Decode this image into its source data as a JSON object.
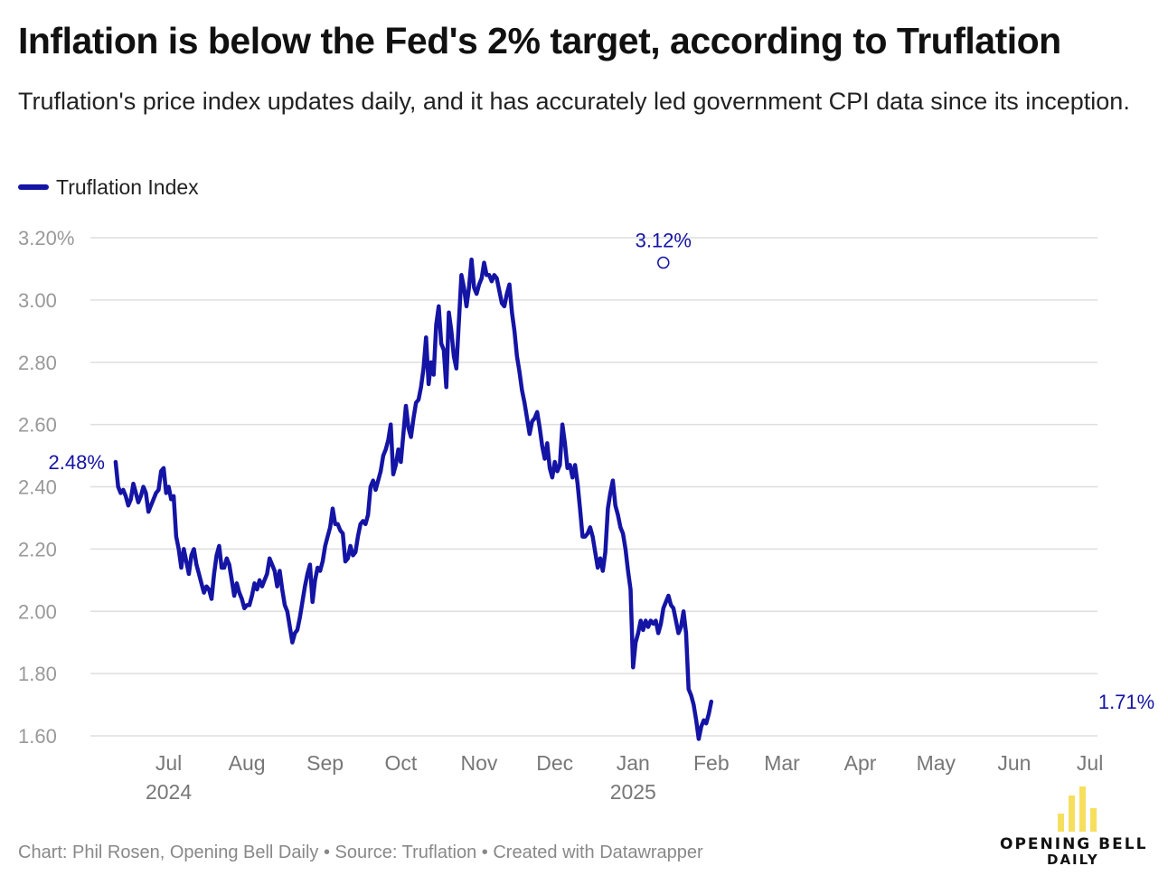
{
  "header": {
    "title": "Inflation is below the Fed's 2% target, according to Truflation",
    "subtitle": "Truflation's price index updates daily, and it has accurately led government CPI data since its inception."
  },
  "legend": {
    "label": "Truflation Index",
    "color": "#1414a5"
  },
  "footer": {
    "text": "Chart: Phil Rosen, Opening Bell Daily • Source: Truflation • Created with Datawrapper"
  },
  "logo": {
    "line1": "OPENING BELL",
    "line2": "DAILY",
    "bar_color": "#f7df5e"
  },
  "chart_data": {
    "type": "line",
    "title": "Inflation is below the Fed's 2% target, according to Truflation",
    "subtitle": "Truflation's price index updates daily, and it has accurately led government CPI data since its inception.",
    "xlabel": "",
    "ylabel": "",
    "ylim": [
      1.6,
      3.2
    ],
    "yticks": [
      1.6,
      1.8,
      2.0,
      2.2,
      2.4,
      2.6,
      2.8,
      3.0,
      3.2
    ],
    "ytick_labels": [
      "1.60",
      "1.80",
      "2.00",
      "2.20",
      "2.40",
      "2.60",
      "2.80",
      "3.00",
      "3.20%"
    ],
    "xlim": [
      "2024-06-14",
      "2025-07-18"
    ],
    "xticks": [
      {
        "date": "2024-07-15",
        "label": "Jul",
        "year": "2024"
      },
      {
        "date": "2024-08-15",
        "label": "Aug",
        "year": ""
      },
      {
        "date": "2024-09-15",
        "label": "Sep",
        "year": ""
      },
      {
        "date": "2024-10-15",
        "label": "Oct",
        "year": ""
      },
      {
        "date": "2024-11-15",
        "label": "Nov",
        "year": ""
      },
      {
        "date": "2024-12-15",
        "label": "Dec",
        "year": ""
      },
      {
        "date": "2025-01-15",
        "label": "Jan",
        "year": "2025"
      },
      {
        "date": "2025-02-15",
        "label": "Feb",
        "year": ""
      },
      {
        "date": "2025-03-15",
        "label": "Mar",
        "year": ""
      },
      {
        "date": "2025-04-15",
        "label": "Apr",
        "year": ""
      },
      {
        "date": "2025-05-15",
        "label": "May",
        "year": ""
      },
      {
        "date": "2025-06-15",
        "label": "Jun",
        "year": ""
      },
      {
        "date": "2025-07-15",
        "label": "Jul",
        "year": ""
      }
    ],
    "grid": true,
    "legend_position": "top-left",
    "series": [
      {
        "name": "Truflation Index",
        "color": "#1414a5",
        "points": [
          [
            "2024-06-24",
            2.48
          ],
          [
            "2024-06-25",
            2.4
          ],
          [
            "2024-06-26",
            2.38
          ],
          [
            "2024-06-27",
            2.39
          ],
          [
            "2024-06-28",
            2.37
          ],
          [
            "2024-06-29",
            2.34
          ],
          [
            "2024-06-30",
            2.36
          ],
          [
            "2024-07-01",
            2.41
          ],
          [
            "2024-07-02",
            2.38
          ],
          [
            "2024-07-03",
            2.35
          ],
          [
            "2024-07-04",
            2.37
          ],
          [
            "2024-07-05",
            2.4
          ],
          [
            "2024-07-06",
            2.38
          ],
          [
            "2024-07-07",
            2.32
          ],
          [
            "2024-07-08",
            2.34
          ],
          [
            "2024-07-09",
            2.36
          ],
          [
            "2024-07-10",
            2.38
          ],
          [
            "2024-07-11",
            2.39
          ],
          [
            "2024-07-12",
            2.45
          ],
          [
            "2024-07-13",
            2.46
          ],
          [
            "2024-07-14",
            2.38
          ],
          [
            "2024-07-15",
            2.4
          ],
          [
            "2024-07-16",
            2.36
          ],
          [
            "2024-07-17",
            2.37
          ],
          [
            "2024-07-18",
            2.24
          ],
          [
            "2024-07-19",
            2.2
          ],
          [
            "2024-07-20",
            2.14
          ],
          [
            "2024-07-21",
            2.2
          ],
          [
            "2024-07-22",
            2.16
          ],
          [
            "2024-07-23",
            2.12
          ],
          [
            "2024-07-24",
            2.18
          ],
          [
            "2024-07-25",
            2.2
          ],
          [
            "2024-07-26",
            2.15
          ],
          [
            "2024-07-27",
            2.12
          ],
          [
            "2024-07-28",
            2.09
          ],
          [
            "2024-07-29",
            2.06
          ],
          [
            "2024-07-30",
            2.08
          ],
          [
            "2024-07-31",
            2.07
          ],
          [
            "2024-08-01",
            2.04
          ],
          [
            "2024-08-02",
            2.12
          ],
          [
            "2024-08-03",
            2.18
          ],
          [
            "2024-08-04",
            2.21
          ],
          [
            "2024-08-05",
            2.14
          ],
          [
            "2024-08-06",
            2.14
          ],
          [
            "2024-08-07",
            2.17
          ],
          [
            "2024-08-08",
            2.15
          ],
          [
            "2024-08-09",
            2.1
          ],
          [
            "2024-08-10",
            2.05
          ],
          [
            "2024-08-11",
            2.09
          ],
          [
            "2024-08-12",
            2.06
          ],
          [
            "2024-08-13",
            2.04
          ],
          [
            "2024-08-14",
            2.01
          ],
          [
            "2024-08-15",
            2.02
          ],
          [
            "2024-08-16",
            2.02
          ],
          [
            "2024-08-17",
            2.05
          ],
          [
            "2024-08-18",
            2.09
          ],
          [
            "2024-08-19",
            2.07
          ],
          [
            "2024-08-20",
            2.1
          ],
          [
            "2024-08-21",
            2.08
          ],
          [
            "2024-08-22",
            2.1
          ],
          [
            "2024-08-23",
            2.12
          ],
          [
            "2024-08-24",
            2.17
          ],
          [
            "2024-08-25",
            2.15
          ],
          [
            "2024-08-26",
            2.13
          ],
          [
            "2024-08-27",
            2.08
          ],
          [
            "2024-08-28",
            2.13
          ],
          [
            "2024-08-29",
            2.07
          ],
          [
            "2024-08-30",
            2.02
          ],
          [
            "2024-08-31",
            2.0
          ],
          [
            "2024-09-01",
            1.95
          ],
          [
            "2024-09-02",
            1.9
          ],
          [
            "2024-09-03",
            1.93
          ],
          [
            "2024-09-04",
            1.94
          ],
          [
            "2024-09-05",
            1.98
          ],
          [
            "2024-09-06",
            2.03
          ],
          [
            "2024-09-07",
            2.08
          ],
          [
            "2024-09-08",
            2.12
          ],
          [
            "2024-09-09",
            2.15
          ],
          [
            "2024-09-10",
            2.03
          ],
          [
            "2024-09-11",
            2.1
          ],
          [
            "2024-09-12",
            2.14
          ],
          [
            "2024-09-13",
            2.13
          ],
          [
            "2024-09-14",
            2.16
          ],
          [
            "2024-09-15",
            2.21
          ],
          [
            "2024-09-16",
            2.24
          ],
          [
            "2024-09-17",
            2.27
          ],
          [
            "2024-09-18",
            2.33
          ],
          [
            "2024-09-19",
            2.28
          ],
          [
            "2024-09-20",
            2.28
          ],
          [
            "2024-09-21",
            2.26
          ],
          [
            "2024-09-22",
            2.25
          ],
          [
            "2024-09-23",
            2.16
          ],
          [
            "2024-09-24",
            2.17
          ],
          [
            "2024-09-25",
            2.21
          ],
          [
            "2024-09-26",
            2.18
          ],
          [
            "2024-09-27",
            2.19
          ],
          [
            "2024-09-28",
            2.24
          ],
          [
            "2024-09-29",
            2.28
          ],
          [
            "2024-09-30",
            2.29
          ],
          [
            "2024-10-01",
            2.28
          ],
          [
            "2024-10-02",
            2.31
          ],
          [
            "2024-10-03",
            2.4
          ],
          [
            "2024-10-04",
            2.42
          ],
          [
            "2024-10-05",
            2.39
          ],
          [
            "2024-10-06",
            2.42
          ],
          [
            "2024-10-07",
            2.45
          ],
          [
            "2024-10-08",
            2.5
          ],
          [
            "2024-10-09",
            2.52
          ],
          [
            "2024-10-10",
            2.55
          ],
          [
            "2024-10-11",
            2.6
          ],
          [
            "2024-10-12",
            2.44
          ],
          [
            "2024-10-13",
            2.47
          ],
          [
            "2024-10-14",
            2.52
          ],
          [
            "2024-10-15",
            2.48
          ],
          [
            "2024-10-16",
            2.57
          ],
          [
            "2024-10-17",
            2.66
          ],
          [
            "2024-10-18",
            2.59
          ],
          [
            "2024-10-19",
            2.56
          ],
          [
            "2024-10-20",
            2.62
          ],
          [
            "2024-10-21",
            2.67
          ],
          [
            "2024-10-22",
            2.68
          ],
          [
            "2024-10-23",
            2.72
          ],
          [
            "2024-10-24",
            2.78
          ],
          [
            "2024-10-25",
            2.88
          ],
          [
            "2024-10-26",
            2.73
          ],
          [
            "2024-10-27",
            2.8
          ],
          [
            "2024-10-28",
            2.76
          ],
          [
            "2024-10-29",
            2.92
          ],
          [
            "2024-10-30",
            2.98
          ],
          [
            "2024-10-31",
            2.86
          ],
          [
            "2024-11-01",
            2.84
          ],
          [
            "2024-11-02",
            2.72
          ],
          [
            "2024-11-03",
            2.96
          ],
          [
            "2024-11-04",
            2.9
          ],
          [
            "2024-11-05",
            2.82
          ],
          [
            "2024-11-06",
            2.78
          ],
          [
            "2024-11-07",
            2.93
          ],
          [
            "2024-11-08",
            3.08
          ],
          [
            "2024-11-09",
            3.04
          ],
          [
            "2024-11-10",
            2.98
          ],
          [
            "2024-11-11",
            3.04
          ],
          [
            "2024-11-12",
            3.13
          ],
          [
            "2024-11-13",
            3.04
          ],
          [
            "2024-11-14",
            3.02
          ],
          [
            "2024-11-15",
            3.05
          ],
          [
            "2024-11-16",
            3.07
          ],
          [
            "2024-11-17",
            3.12
          ],
          [
            "2024-11-18",
            3.08
          ],
          [
            "2024-11-19",
            3.08
          ],
          [
            "2024-11-20",
            3.06
          ],
          [
            "2024-11-21",
            3.08
          ],
          [
            "2024-11-22",
            3.07
          ],
          [
            "2024-11-23",
            3.03
          ],
          [
            "2024-11-24",
            2.99
          ],
          [
            "2024-11-25",
            2.98
          ],
          [
            "2024-11-26",
            3.02
          ],
          [
            "2024-11-27",
            3.05
          ],
          [
            "2024-11-28",
            2.96
          ],
          [
            "2024-11-29",
            2.9
          ],
          [
            "2024-11-30",
            2.82
          ],
          [
            "2024-12-01",
            2.77
          ],
          [
            "2024-12-02",
            2.71
          ],
          [
            "2024-12-03",
            2.67
          ],
          [
            "2024-12-04",
            2.62
          ],
          [
            "2024-12-05",
            2.57
          ],
          [
            "2024-12-06",
            2.61
          ],
          [
            "2024-12-07",
            2.62
          ],
          [
            "2024-12-08",
            2.64
          ],
          [
            "2024-12-09",
            2.59
          ],
          [
            "2024-12-10",
            2.53
          ],
          [
            "2024-12-11",
            2.49
          ],
          [
            "2024-12-12",
            2.54
          ],
          [
            "2024-12-13",
            2.46
          ],
          [
            "2024-12-14",
            2.43
          ],
          [
            "2024-12-15",
            2.48
          ],
          [
            "2024-12-16",
            2.45
          ],
          [
            "2024-12-17",
            2.47
          ],
          [
            "2024-12-18",
            2.6
          ],
          [
            "2024-12-19",
            2.54
          ],
          [
            "2024-12-20",
            2.46
          ],
          [
            "2024-12-21",
            2.47
          ],
          [
            "2024-12-22",
            2.43
          ],
          [
            "2024-12-23",
            2.47
          ],
          [
            "2024-12-24",
            2.41
          ],
          [
            "2024-12-25",
            2.33
          ],
          [
            "2024-12-26",
            2.24
          ],
          [
            "2024-12-27",
            2.24
          ],
          [
            "2024-12-28",
            2.25
          ],
          [
            "2024-12-29",
            2.27
          ],
          [
            "2024-12-30",
            2.24
          ],
          [
            "2024-12-31",
            2.19
          ],
          [
            "2025-01-01",
            2.14
          ],
          [
            "2025-01-02",
            2.17
          ],
          [
            "2025-01-03",
            2.13
          ],
          [
            "2025-01-04",
            2.19
          ],
          [
            "2025-01-05",
            2.33
          ],
          [
            "2025-01-06",
            2.38
          ],
          [
            "2025-01-07",
            2.42
          ],
          [
            "2025-01-08",
            2.34
          ],
          [
            "2025-01-09",
            2.31
          ],
          [
            "2025-01-10",
            2.27
          ],
          [
            "2025-01-11",
            2.25
          ],
          [
            "2025-01-12",
            2.2
          ],
          [
            "2025-01-13",
            2.13
          ],
          [
            "2025-01-14",
            2.07
          ],
          [
            "2025-01-15",
            1.82
          ],
          [
            "2025-01-16",
            1.9
          ],
          [
            "2025-01-17",
            1.93
          ],
          [
            "2025-01-18",
            1.97
          ],
          [
            "2025-01-19",
            1.94
          ],
          [
            "2025-01-20",
            1.97
          ],
          [
            "2025-01-21",
            1.95
          ],
          [
            "2025-01-22",
            1.97
          ],
          [
            "2025-01-23",
            1.96
          ],
          [
            "2025-01-24",
            1.97
          ],
          [
            "2025-01-25",
            1.93
          ],
          [
            "2025-01-26",
            1.96
          ],
          [
            "2025-01-27",
            2.01
          ],
          [
            "2025-01-28",
            2.03
          ],
          [
            "2025-01-29",
            2.05
          ],
          [
            "2025-01-30",
            2.02
          ],
          [
            "2025-01-31",
            2.01
          ],
          [
            "2025-02-01",
            1.97
          ],
          [
            "2025-02-02",
            1.93
          ],
          [
            "2025-02-03",
            1.95
          ],
          [
            "2025-02-04",
            2.0
          ],
          [
            "2025-02-05",
            1.93
          ],
          [
            "2025-02-06",
            1.75
          ],
          [
            "2025-02-07",
            1.73
          ],
          [
            "2025-02-08",
            1.7
          ],
          [
            "2025-02-09",
            1.65
          ],
          [
            "2025-02-10",
            1.59
          ],
          [
            "2025-02-11",
            1.63
          ],
          [
            "2025-02-12",
            1.65
          ],
          [
            "2025-02-13",
            1.64
          ],
          [
            "2025-02-14",
            1.67
          ],
          [
            "2025-02-15",
            1.71
          ]
        ]
      }
    ],
    "annotations": [
      {
        "label": "2.48%",
        "date": "2024-06-24",
        "value": 2.48,
        "anchor": "start"
      },
      {
        "label": "3.12%",
        "date": "2025-01-27",
        "value": 3.12,
        "anchor": "peak",
        "circle": true
      },
      {
        "label": "1.71%",
        "date": "2025-07-14",
        "value": 1.71,
        "anchor": "end"
      }
    ]
  }
}
